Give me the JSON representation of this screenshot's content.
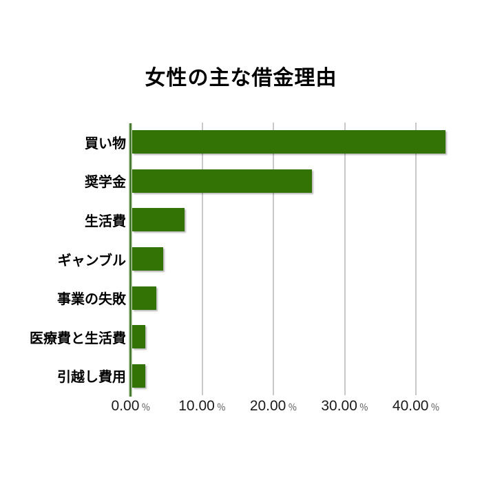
{
  "chart_data": {
    "type": "bar",
    "orientation": "horizontal",
    "title": "女性の主な借金理由",
    "categories": [
      "買い物",
      "奨学金",
      "生活費",
      "ギャンブル",
      "事業の失敗",
      "医療費と生活費",
      "引越し費用"
    ],
    "values": [
      43.9,
      25.2,
      7.3,
      4.3,
      3.4,
      1.8,
      1.8
    ],
    "value_unit": "%",
    "xlim": [
      0,
      45
    ],
    "x_tick_values": [
      0,
      10,
      20,
      30,
      40
    ],
    "x_tick_labels": [
      "0.00",
      "10.00",
      "20.00",
      "30.00",
      "40.00"
    ],
    "x_tick_suffix": "％",
    "grid": true,
    "legend": false,
    "colors": {
      "bar": "#337305",
      "gridline": "#c8c8c8",
      "axis_line": "#2d6312",
      "axis_halo": "#b4cba5",
      "title_text": "#000000",
      "label_text": "#000000",
      "tick_text": "#1a1a1a",
      "tick_suffix_text": "#555555",
      "background": "#ffffff"
    }
  }
}
